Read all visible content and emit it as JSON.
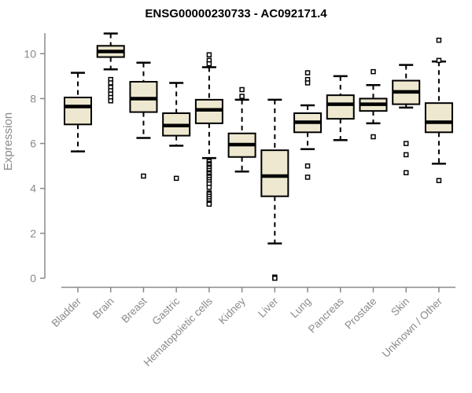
{
  "chart_data": {
    "type": "boxplot",
    "title": "ENSG00000230733 - AC092171.4",
    "ylabel": "Expression",
    "xlabel": "",
    "ylim": [
      0,
      10.9
    ],
    "yticks": [
      0,
      2,
      4,
      6,
      8,
      10
    ],
    "grid": false,
    "legend": "none",
    "categories": [
      "Bladder",
      "Brain",
      "Breast",
      "Gastric",
      "Hematopoietic cells",
      "Kidney",
      "Liver",
      "Lung",
      "Pancreas",
      "Prostate",
      "Skin",
      "Unknown / Other"
    ],
    "series": [
      {
        "name": "Bladder",
        "whisker_low": 5.65,
        "q1": 6.85,
        "median": 7.65,
        "q3": 8.05,
        "whisker_high": 9.15,
        "outliers": []
      },
      {
        "name": "Brain",
        "whisker_low": 9.3,
        "q1": 9.85,
        "median": 10.1,
        "q3": 10.35,
        "whisker_high": 10.9,
        "outliers": [
          8.85,
          8.7,
          8.5,
          8.35,
          8.2,
          8.05,
          7.9
        ]
      },
      {
        "name": "Breast",
        "whisker_low": 6.25,
        "q1": 7.4,
        "median": 8.0,
        "q3": 8.75,
        "whisker_high": 9.6,
        "outliers": [
          4.55
        ]
      },
      {
        "name": "Gastric",
        "whisker_low": 5.9,
        "q1": 6.35,
        "median": 6.8,
        "q3": 7.35,
        "whisker_high": 8.7,
        "outliers": [
          4.45
        ]
      },
      {
        "name": "Hematopoietic cells",
        "whisker_low": 5.35,
        "q1": 6.9,
        "median": 7.5,
        "q3": 7.95,
        "whisker_high": 9.4,
        "outliers": [
          9.95,
          9.7,
          9.55,
          5.2,
          5.1,
          5.05,
          4.95,
          4.9,
          4.8,
          4.7,
          4.65,
          4.55,
          4.5,
          4.4,
          4.3,
          4.2,
          4.05,
          3.8,
          3.75,
          3.65,
          3.55,
          3.45,
          3.35,
          3.3
        ]
      },
      {
        "name": "Kidney",
        "whisker_low": 4.75,
        "q1": 5.4,
        "median": 5.95,
        "q3": 6.45,
        "whisker_high": 7.95,
        "outliers": [
          8.4,
          8.1
        ]
      },
      {
        "name": "Liver",
        "whisker_low": 1.55,
        "q1": 3.65,
        "median": 4.55,
        "q3": 5.7,
        "whisker_high": 7.95,
        "outliers": [
          0.05,
          0.0
        ]
      },
      {
        "name": "Lung",
        "whisker_low": 5.75,
        "q1": 6.5,
        "median": 6.95,
        "q3": 7.35,
        "whisker_high": 7.7,
        "outliers": [
          9.15,
          8.85,
          8.7,
          5.0,
          4.5
        ]
      },
      {
        "name": "Pancreas",
        "whisker_low": 6.15,
        "q1": 7.1,
        "median": 7.75,
        "q3": 8.15,
        "whisker_high": 9.0,
        "outliers": []
      },
      {
        "name": "Prostate",
        "whisker_low": 6.9,
        "q1": 7.45,
        "median": 7.75,
        "q3": 8.0,
        "whisker_high": 8.6,
        "outliers": [
          9.2,
          6.3
        ]
      },
      {
        "name": "Skin",
        "whisker_low": 7.6,
        "q1": 7.75,
        "median": 8.3,
        "q3": 8.8,
        "whisker_high": 9.5,
        "outliers": [
          6.0,
          5.5,
          4.7
        ]
      },
      {
        "name": "Unknown / Other",
        "whisker_low": 5.1,
        "q1": 6.5,
        "median": 6.95,
        "q3": 7.8,
        "whisker_high": 9.65,
        "outliers": [
          10.6,
          9.7,
          4.35
        ]
      }
    ],
    "colors": {
      "box_fill": "#ede8cf",
      "box_border": "#000000",
      "median": "#000000",
      "whisker": "#000000",
      "outlier_stroke": "#000000",
      "axis": "#8a8a8a",
      "tick_label": "#8a8a8a",
      "title": "#000000",
      "background": "#ffffff"
    }
  }
}
